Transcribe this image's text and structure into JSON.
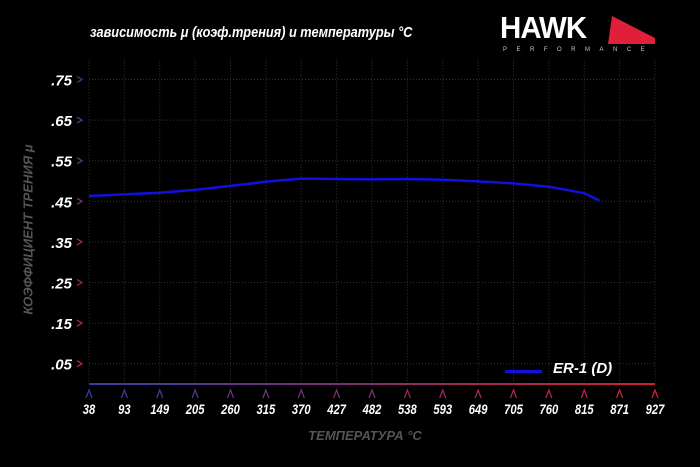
{
  "title": "зависимость μ (коэф.трения) и температуры °C",
  "logo": {
    "word": "HAWK",
    "sub": "PERFORMANCE",
    "accent": "#e0203a"
  },
  "chart_data": {
    "type": "line",
    "title": "зависимость μ (коэф.трения) и температуры °C",
    "xlabel": "ТЕМПЕРАТУРА °C",
    "ylabel": "КОЭФФИЦИЕНТ ТРЕНИЯ μ",
    "x_ticks": [
      "38",
      "93",
      "149",
      "205",
      "260",
      "315",
      "370",
      "427",
      "482",
      "538",
      "593",
      "649",
      "705",
      "760",
      "815",
      "871",
      "927"
    ],
    "y_ticks": [
      ".75",
      ".65",
      ".55",
      ".45",
      ".35",
      ".25",
      ".15",
      ".05"
    ],
    "y_tick_values": [
      0.75,
      0.65,
      0.55,
      0.45,
      0.35,
      0.25,
      0.15,
      0.05
    ],
    "xlim": [
      38,
      927
    ],
    "ylim": [
      0,
      0.8
    ],
    "grid": true,
    "legend_position": "bottom-right",
    "series": [
      {
        "name": "ER-1 (D)",
        "color": "#1010e0",
        "x": [
          38,
          93,
          149,
          205,
          260,
          315,
          370,
          427,
          482,
          538,
          593,
          649,
          705,
          760,
          815,
          839
        ],
        "y": [
          0.463,
          0.467,
          0.471,
          0.478,
          0.488,
          0.498,
          0.506,
          0.505,
          0.504,
          0.505,
          0.503,
          0.499,
          0.494,
          0.486,
          0.47,
          0.452
        ]
      }
    ]
  }
}
